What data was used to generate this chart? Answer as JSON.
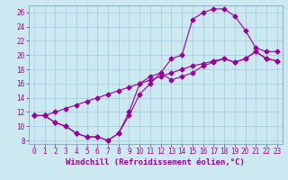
{
  "title": "",
  "xlabel": "Windchill (Refroidissement éolien,°C)",
  "ylabel": "",
  "bg_color": "#cce8f0",
  "grid_color": "#aaccdd",
  "line_color": "#990099",
  "marker_color": "#990099",
  "xlim": [
    -0.5,
    23.5
  ],
  "ylim": [
    7.5,
    27.0
  ],
  "xticks": [
    0,
    1,
    2,
    3,
    4,
    5,
    6,
    7,
    8,
    9,
    10,
    11,
    12,
    13,
    14,
    15,
    16,
    17,
    18,
    19,
    20,
    21,
    22,
    23
  ],
  "yticks": [
    8,
    10,
    12,
    14,
    16,
    18,
    20,
    22,
    24,
    26
  ],
  "line1_x": [
    0,
    1,
    2,
    3,
    4,
    5,
    6,
    7,
    8,
    9,
    10,
    11,
    12,
    13,
    14,
    15,
    16,
    17,
    18,
    19,
    20,
    21,
    22,
    23
  ],
  "line1_y": [
    11.5,
    11.5,
    12.0,
    12.5,
    13.0,
    13.5,
    14.0,
    14.5,
    15.0,
    15.5,
    16.0,
    16.5,
    17.0,
    17.5,
    18.0,
    18.5,
    18.8,
    19.2,
    19.5,
    19.0,
    19.5,
    20.5,
    19.5,
    19.2
  ],
  "line2_x": [
    0,
    1,
    2,
    3,
    4,
    5,
    6,
    7,
    8,
    9,
    10,
    11,
    12,
    13,
    14,
    15,
    16,
    17,
    18,
    19,
    20,
    21,
    22,
    23
  ],
  "line2_y": [
    11.5,
    11.5,
    10.5,
    10.0,
    9.0,
    8.5,
    8.5,
    8.0,
    9.0,
    11.5,
    14.5,
    16.0,
    17.5,
    19.5,
    20.0,
    25.0,
    26.0,
    26.5,
    26.5,
    25.5,
    23.5,
    21.0,
    20.5,
    20.5
  ],
  "line3_x": [
    0,
    1,
    2,
    3,
    4,
    5,
    6,
    7,
    8,
    9,
    10,
    11,
    12,
    13,
    14,
    15,
    16,
    17,
    18,
    19,
    20,
    21,
    22,
    23
  ],
  "line3_y": [
    11.5,
    11.5,
    10.5,
    10.0,
    9.0,
    8.5,
    8.5,
    8.0,
    9.0,
    12.0,
    16.0,
    17.0,
    17.5,
    16.5,
    17.0,
    17.5,
    18.5,
    19.0,
    19.5,
    19.0,
    19.5,
    20.5,
    19.5,
    19.2
  ],
  "font_size": 6.5,
  "tick_font_size": 5.5
}
